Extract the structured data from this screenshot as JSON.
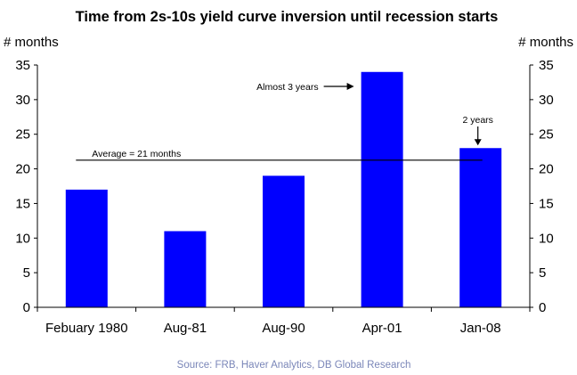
{
  "chart_data": {
    "type": "bar",
    "title": "Time from 2s-10s yield curve inversion until recession starts",
    "ylabel_left": "# months",
    "ylabel_right": "# months",
    "categories": [
      "Febuary 1980",
      "Aug-81",
      "Aug-90",
      "Apr-01",
      "Jan-08"
    ],
    "values": [
      17,
      11,
      19,
      34,
      23
    ],
    "ylim": [
      0,
      35
    ],
    "yticks": [
      0,
      5,
      10,
      15,
      20,
      25,
      30,
      35
    ],
    "bar_color": "#0000ff",
    "average": {
      "value": 21,
      "label": "Average = 21 months"
    },
    "annotations": [
      {
        "text": "Almost 3 years",
        "category": "Apr-01"
      },
      {
        "text": "2 years",
        "category": "Jan-08"
      }
    ],
    "grid": false,
    "legend": "none"
  },
  "source": "Source: FRB, Haver Analytics, DB Global Research"
}
